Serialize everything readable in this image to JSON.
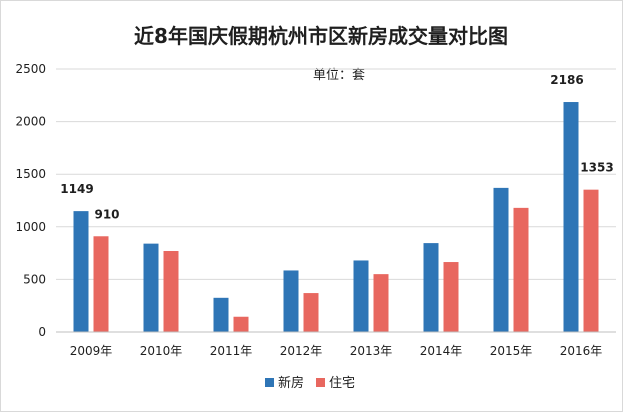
{
  "chart_data": {
    "type": "bar",
    "title": "近8年国庆假期杭州市区新房成交量对比图",
    "unit_label": "单位：套",
    "categories": [
      "2009年",
      "2010年",
      "2011年",
      "2012年",
      "2013年",
      "2014年",
      "2015年",
      "2016年"
    ],
    "series": [
      {
        "name": "新房",
        "color": "#2e75b6",
        "values": [
          1149,
          840,
          325,
          585,
          680,
          845,
          1370,
          2186
        ],
        "labels": [
          "1149",
          "",
          "",
          "",
          "",
          "",
          "",
          "2186"
        ]
      },
      {
        "name": "住宅",
        "color": "#e8675f",
        "values": [
          910,
          770,
          145,
          370,
          550,
          665,
          1180,
          1353
        ],
        "labels": [
          "910",
          "",
          "",
          "",
          "",
          "",
          "",
          "1353"
        ]
      }
    ],
    "y_ticks": [
      "0",
      "500",
      "1000",
      "1500",
      "2000",
      "2500"
    ],
    "ylim": [
      0,
      2500
    ],
    "grid": true,
    "legend_position": "bottom"
  }
}
